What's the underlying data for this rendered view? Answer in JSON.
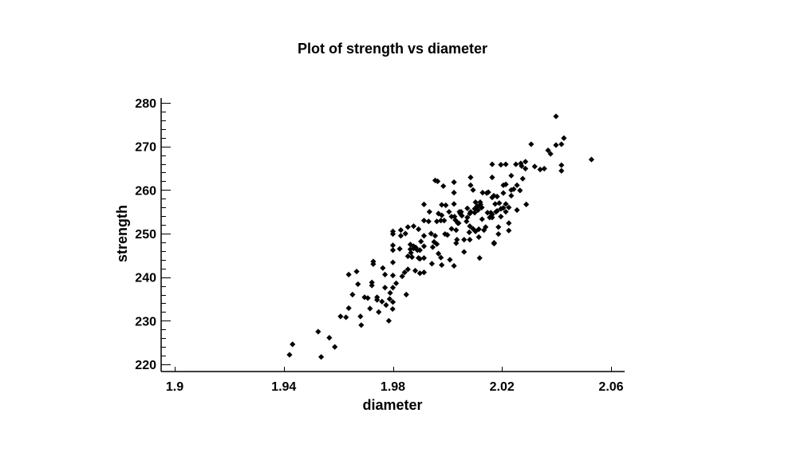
{
  "chart_data": {
    "type": "scatter",
    "title": "Plot of strength vs diameter",
    "xlabel": "diameter",
    "ylabel": "strength",
    "xlim": [
      1.9,
      2.06
    ],
    "ylim": [
      220,
      280
    ],
    "xticks": [
      1.9,
      1.94,
      1.98,
      2.02,
      2.06
    ],
    "xtick_labels": [
      "1.9",
      "1.94",
      "1.98",
      "2.02",
      "2.06"
    ],
    "yticks": [
      220,
      230,
      240,
      250,
      260,
      270,
      280
    ],
    "ytick_labels": [
      "220",
      "230",
      "240",
      "250",
      "260",
      "270",
      "280"
    ],
    "y_minor_step": 2,
    "grid": false,
    "legend": null,
    "marker": "diamond",
    "marker_color": "#000000",
    "series": [
      {
        "name": "strength",
        "points": [
          [
            1.9421,
            222.2
          ],
          [
            1.9432,
            224.6
          ],
          [
            1.9526,
            227.5
          ],
          [
            1.9537,
            221.7
          ],
          [
            1.9567,
            226.1
          ],
          [
            1.9587,
            224.0
          ],
          [
            1.9608,
            231.0
          ],
          [
            1.9628,
            230.8
          ],
          [
            1.9638,
            232.9
          ],
          [
            1.9652,
            236.0
          ],
          [
            1.9638,
            240.6
          ],
          [
            1.9667,
            241.3
          ],
          [
            1.9672,
            238.4
          ],
          [
            1.9681,
            231.0
          ],
          [
            1.9684,
            229.0
          ],
          [
            1.9696,
            235.4
          ],
          [
            1.9708,
            235.2
          ],
          [
            1.9716,
            232.8
          ],
          [
            1.9723,
            238.8
          ],
          [
            1.9723,
            238.1
          ],
          [
            1.9728,
            243.6
          ],
          [
            1.9728,
            243.0
          ],
          [
            1.9742,
            235.4
          ],
          [
            1.9742,
            234.8
          ],
          [
            1.9748,
            232.0
          ],
          [
            1.976,
            234.4
          ],
          [
            1.9763,
            242.1
          ],
          [
            1.9771,
            240.6
          ],
          [
            1.9771,
            237.6
          ],
          [
            1.9775,
            233.6
          ],
          [
            1.9785,
            230.0
          ],
          [
            1.9788,
            235.0
          ],
          [
            1.979,
            236.4
          ],
          [
            1.9799,
            232.7
          ],
          [
            1.98,
            234.3
          ],
          [
            1.98,
            250.5
          ],
          [
            1.98,
            249.9
          ],
          [
            1.98,
            247.3
          ],
          [
            1.98,
            246.2
          ],
          [
            1.98,
            243.4
          ],
          [
            1.98,
            240.4
          ],
          [
            1.98,
            237.6
          ],
          [
            1.9812,
            238.6
          ],
          [
            1.9825,
            246.5
          ],
          [
            1.9829,
            250.8
          ],
          [
            1.9829,
            249.5
          ],
          [
            1.9834,
            240.2
          ],
          [
            1.9843,
            241.1
          ],
          [
            1.9846,
            250.0
          ],
          [
            1.9849,
            236.0
          ],
          [
            1.9855,
            251.5
          ],
          [
            1.9855,
            244.8
          ],
          [
            1.9855,
            241.8
          ],
          [
            1.9864,
            246.4
          ],
          [
            1.9864,
            247.5
          ],
          [
            1.9866,
            245.6
          ],
          [
            1.987,
            244.6
          ],
          [
            1.9876,
            251.7
          ],
          [
            1.9876,
            246.6
          ],
          [
            1.9876,
            247.1
          ],
          [
            1.9882,
            241.5
          ],
          [
            1.9884,
            246.8
          ],
          [
            1.989,
            246.2
          ],
          [
            1.9894,
            244.4
          ],
          [
            1.9894,
            251.0
          ],
          [
            1.9899,
            246.2
          ],
          [
            1.9899,
            244.2
          ],
          [
            1.9899,
            240.9
          ],
          [
            1.9903,
            248.2
          ],
          [
            1.9914,
            256.7
          ],
          [
            1.9914,
            253.0
          ],
          [
            1.9914,
            247.1
          ],
          [
            1.9914,
            249.5
          ],
          [
            1.9914,
            244.4
          ],
          [
            1.9914,
            241.1
          ],
          [
            1.9931,
            252.8
          ],
          [
            1.9934,
            255.0
          ],
          [
            1.994,
            250.0
          ],
          [
            1.9943,
            243.1
          ],
          [
            1.9946,
            246.9
          ],
          [
            1.9951,
            248.1
          ],
          [
            1.9955,
            262.2
          ],
          [
            1.9955,
            249.5
          ],
          [
            1.9961,
            252.8
          ],
          [
            1.9961,
            247.6
          ],
          [
            1.9964,
            262.0
          ],
          [
            1.9967,
            254.6
          ],
          [
            1.9967,
            245.4
          ],
          [
            1.9976,
            253.0
          ],
          [
            1.9976,
            244.5
          ],
          [
            1.9979,
            256.6
          ],
          [
            1.9979,
            254.2
          ],
          [
            1.9979,
            242.8
          ],
          [
            1.9985,
            260.9
          ],
          [
            1.9988,
            253.0
          ],
          [
            1.9991,
            249.9
          ],
          [
            1.9994,
            256.5
          ],
          [
            2.0,
            249.7
          ],
          [
            2.0006,
            255.0
          ],
          [
            2.0009,
            244.0
          ],
          [
            2.0015,
            251.1
          ],
          [
            2.0015,
            253.9
          ],
          [
            2.0024,
            261.8
          ],
          [
            2.0024,
            259.4
          ],
          [
            2.0024,
            256.8
          ],
          [
            2.0024,
            242.6
          ],
          [
            2.0026,
            253.9
          ],
          [
            2.0029,
            253.1
          ],
          [
            2.0032,
            250.8
          ],
          [
            2.0032,
            247.8
          ],
          [
            2.0035,
            248.6
          ],
          [
            2.0038,
            252.4
          ],
          [
            2.0041,
            252.4
          ],
          [
            2.0044,
            255.0
          ],
          [
            2.0047,
            254.6
          ],
          [
            2.005,
            255.0
          ],
          [
            2.0053,
            254.1
          ],
          [
            2.0061,
            248.6
          ],
          [
            2.0061,
            245.8
          ],
          [
            2.007,
            252.8
          ],
          [
            2.0073,
            255.8
          ],
          [
            2.0073,
            253.7
          ],
          [
            2.008,
            250.3
          ],
          [
            2.0082,
            254.6
          ],
          [
            2.0082,
            251.7
          ],
          [
            2.0082,
            248.6
          ],
          [
            2.0085,
            262.9
          ],
          [
            2.0085,
            261.1
          ],
          [
            2.0085,
            255.0
          ],
          [
            2.0094,
            260.0
          ],
          [
            2.0094,
            251.1
          ],
          [
            2.01,
            254.8
          ],
          [
            2.01,
            255.7
          ],
          [
            2.0103,
            250.5
          ],
          [
            2.0103,
            257.2
          ],
          [
            2.0109,
            256.3
          ],
          [
            2.0112,
            255.4
          ],
          [
            2.0115,
            251.0
          ],
          [
            2.0115,
            249.2
          ],
          [
            2.0118,
            244.4
          ],
          [
            2.012,
            257.2
          ],
          [
            2.0121,
            256.7
          ],
          [
            2.0124,
            256.0
          ],
          [
            2.0126,
            256.0
          ],
          [
            2.0127,
            253.3
          ],
          [
            2.0129,
            259.4
          ],
          [
            2.0134,
            250.8
          ],
          [
            2.014,
            251.5
          ],
          [
            2.0144,
            259.3
          ],
          [
            2.0147,
            254.8
          ],
          [
            2.015,
            259.5
          ],
          [
            2.0155,
            253.7
          ],
          [
            2.0159,
            254.8
          ],
          [
            2.0164,
            265.9
          ],
          [
            2.0164,
            262.9
          ],
          [
            2.0164,
            258.3
          ],
          [
            2.0164,
            254.4
          ],
          [
            2.0164,
            253.7
          ],
          [
            2.017,
            258.7
          ],
          [
            2.0171,
            247.9
          ],
          [
            2.0171,
            247.7
          ],
          [
            2.0175,
            256.8
          ],
          [
            2.0178,
            255.0
          ],
          [
            2.0182,
            255.2
          ],
          [
            2.0182,
            258.5
          ],
          [
            2.0187,
            251.5
          ],
          [
            2.0187,
            249.9
          ],
          [
            2.019,
            257.0
          ],
          [
            2.0196,
            265.8
          ],
          [
            2.0196,
            253.9
          ],
          [
            2.0196,
            255.7
          ],
          [
            2.0205,
            255.9
          ],
          [
            2.0205,
            259.3
          ],
          [
            2.0205,
            261.1
          ],
          [
            2.0214,
            265.9
          ],
          [
            2.0214,
            261.3
          ],
          [
            2.0214,
            256.8
          ],
          [
            2.0214,
            255.0
          ],
          [
            2.0225,
            256.0
          ],
          [
            2.0225,
            252.4
          ],
          [
            2.0225,
            250.7
          ],
          [
            2.0234,
            258.7
          ],
          [
            2.0234,
            260.0
          ],
          [
            2.0234,
            263.3
          ],
          [
            2.0243,
            260.2
          ],
          [
            2.0251,
            265.9
          ],
          [
            2.0255,
            255.4
          ],
          [
            2.0255,
            261.1
          ],
          [
            2.0266,
            259.9
          ],
          [
            2.0269,
            266.1
          ],
          [
            2.0272,
            265.5
          ],
          [
            2.0276,
            262.6
          ],
          [
            2.0286,
            264.9
          ],
          [
            2.0286,
            266.5
          ],
          [
            2.0289,
            256.7
          ],
          [
            2.0307,
            270.5
          ],
          [
            2.032,
            265.4
          ],
          [
            2.034,
            264.7
          ],
          [
            2.0355,
            264.9
          ],
          [
            2.0369,
            269.1
          ],
          [
            2.0378,
            268.3
          ],
          [
            2.0398,
            276.9
          ],
          [
            2.0398,
            270.3
          ],
          [
            2.0418,
            270.5
          ],
          [
            2.0418,
            265.7
          ],
          [
            2.0418,
            264.4
          ],
          [
            2.0427,
            271.9
          ],
          [
            2.0528,
            267.0
          ]
        ]
      }
    ]
  }
}
